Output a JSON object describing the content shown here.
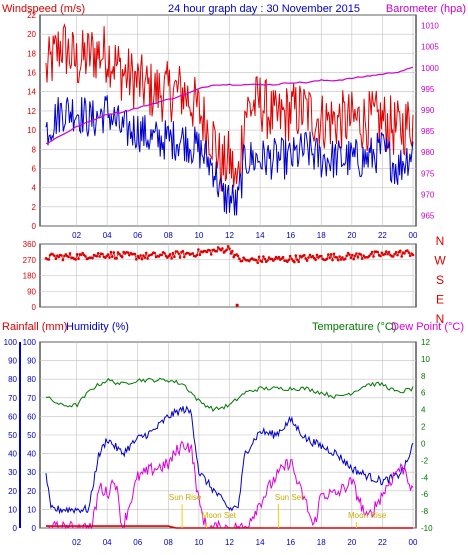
{
  "title": "24 hour graph day : 30 November 2015",
  "colors": {
    "wind": "#e00000",
    "gust": "#e00000",
    "windAvg": "#0000cc",
    "baro": "#cc00cc",
    "dir": "#e00000",
    "rain": "#e00000",
    "hum": "#0000cc",
    "temp": "#007700",
    "dew": "#dd00dd",
    "sun": "#ffcc00",
    "moon": "#ffcc00",
    "grid": "#c0c0c0"
  },
  "chart_data": [
    {
      "type": "line",
      "ylabel": "Windspeed (m/s)",
      "y2label": "Barometer (hpa)",
      "xticks": [
        "02",
        "04",
        "06",
        "08",
        "10",
        "12",
        "14",
        "16",
        "18",
        "20",
        "22",
        "00"
      ],
      "ylim": [
        0,
        22
      ],
      "yticks": [
        "0",
        "2",
        "4",
        "6",
        "8",
        "10",
        "12",
        "14",
        "16",
        "18",
        "20",
        "22"
      ],
      "y2lim": [
        962.5,
        1012.5
      ],
      "y2ticks": [
        "965",
        "970",
        "975",
        "980",
        "985",
        "990",
        "995",
        "1000",
        "1005",
        "1010"
      ],
      "series": [
        {
          "key": "gust",
          "hours": [
            0,
            1,
            2,
            3,
            4,
            5,
            6,
            7,
            8,
            9,
            10,
            11,
            11.5,
            12,
            12.5,
            13,
            14,
            15,
            16,
            17,
            18,
            19,
            20,
            21,
            22,
            23,
            24
          ],
          "values": [
            16,
            19,
            17,
            18,
            18,
            16,
            15,
            14,
            14,
            14,
            12,
            9,
            6,
            7,
            4,
            12,
            13,
            11,
            12,
            12,
            11,
            11,
            11,
            11,
            11,
            10,
            11
          ]
        },
        {
          "key": "avg",
          "hours": [
            0,
            1,
            2,
            3,
            4,
            5,
            6,
            7,
            8,
            9,
            10,
            11,
            11.5,
            12,
            12.5,
            13,
            14,
            15,
            16,
            17,
            18,
            19,
            20,
            21,
            22,
            23,
            24
          ],
          "values": [
            10,
            12,
            12,
            11,
            12,
            10,
            10,
            9,
            9,
            9,
            8,
            6,
            3,
            3,
            2,
            7,
            7,
            7,
            7,
            8,
            7,
            7,
            7,
            7,
            8,
            6,
            8
          ]
        },
        {
          "key": "baro",
          "hours": [
            0,
            1,
            2,
            3,
            4,
            5,
            6,
            7,
            8,
            9,
            10,
            11,
            12,
            13,
            14,
            15,
            16,
            17,
            18,
            19,
            20,
            21,
            22,
            23,
            24
          ],
          "values": [
            982,
            984,
            986,
            987.5,
            989,
            989.5,
            990.5,
            991.5,
            992.5,
            993.5,
            995,
            996,
            996,
            996,
            996,
            996,
            996.5,
            996.5,
            997,
            997,
            997.5,
            998,
            998.5,
            999,
            1000
          ]
        }
      ]
    },
    {
      "type": "scatter",
      "ylabel": "",
      "ylim": [
        0,
        360
      ],
      "yticks": [
        "0",
        "90",
        "180",
        "270",
        "360"
      ],
      "compass": [
        "N",
        "W",
        "S",
        "E",
        "N"
      ],
      "series": [
        {
          "key": "dir",
          "hours": [
            0,
            2,
            4,
            6,
            8,
            9.5,
            11,
            12,
            12.5,
            13,
            14,
            16,
            18,
            20,
            22,
            24
          ],
          "values": [
            285,
            290,
            300,
            290,
            295,
            305,
            320,
            335,
            280,
            265,
            270,
            275,
            285,
            290,
            300,
            310
          ],
          "outlier": {
            "hour": 12.5,
            "value": 10
          }
        }
      ]
    },
    {
      "type": "line",
      "ylabel": "Rainfall (mm)",
      "y1label": "Humidity (%)",
      "y2label": "Temperature (°C)",
      "y3label": "Dew Point (°C)",
      "ylim": [
        0,
        100
      ],
      "yticks": [
        "0",
        "10",
        "20",
        "30",
        "40",
        "50",
        "60",
        "70",
        "80",
        "90",
        "100"
      ],
      "y2lim": [
        -10,
        12
      ],
      "y2ticks": [
        "-10",
        "-8",
        "-6",
        "-4",
        "-2",
        "0",
        "2",
        "4",
        "6",
        "8",
        "10",
        "12"
      ],
      "annotations": [
        "Sun Rise",
        "Moon Set",
        "Sun Set",
        "Moon Rise"
      ],
      "series": [
        {
          "key": "temp",
          "hours": [
            0,
            1,
            2,
            3,
            4,
            5,
            6,
            7,
            8,
            9,
            10,
            11,
            12,
            13,
            14,
            15,
            16,
            17,
            18,
            19,
            20,
            21,
            22,
            23,
            24
          ],
          "values": [
            5.5,
            4.5,
            4.5,
            6.5,
            7.5,
            7,
            7.5,
            7.5,
            7.5,
            7,
            5,
            4,
            4.5,
            6,
            6.5,
            6.5,
            6.5,
            6.5,
            6,
            5.5,
            6,
            7,
            7,
            6,
            6.5
          ]
        },
        {
          "key": "hum",
          "hours": [
            0,
            0.3,
            1,
            2,
            2.8,
            3.4,
            4,
            5,
            6,
            7,
            8,
            9,
            9.5,
            10,
            11,
            12,
            12.6,
            13,
            14,
            15,
            16,
            17,
            18,
            19,
            20,
            21,
            22,
            23,
            23.6,
            24
          ],
          "values": [
            30,
            10,
            10,
            10,
            10,
            38,
            48,
            40,
            48,
            52,
            60,
            64,
            62,
            30,
            20,
            10,
            12,
            40,
            52,
            50,
            58,
            48,
            44,
            40,
            32,
            28,
            25,
            28,
            35,
            45
          ]
        },
        {
          "key": "dew",
          "hours": [
            0,
            3,
            3.5,
            4,
            4.5,
            5,
            6,
            7,
            8,
            8.5,
            9,
            9.5,
            10,
            10.5,
            11,
            12,
            13,
            14,
            15,
            16,
            16.5,
            17,
            17.5,
            18,
            19,
            20,
            21,
            22,
            23,
            23.5,
            24
          ],
          "values": [
            -10,
            -10,
            -5,
            -6,
            -4,
            -10,
            -4,
            -3,
            -2.5,
            -1,
            0,
            -0.5,
            -7,
            -10,
            -10,
            -10,
            -10,
            -7,
            -4,
            -2,
            -5,
            -7,
            -10,
            -6,
            -6,
            -4.5,
            -9,
            -6,
            -3,
            -3,
            -6
          ]
        },
        {
          "key": "rain",
          "hours": [
            0,
            8,
            8.5,
            24
          ],
          "values": [
            1,
            1,
            0,
            0
          ]
        }
      ]
    }
  ]
}
